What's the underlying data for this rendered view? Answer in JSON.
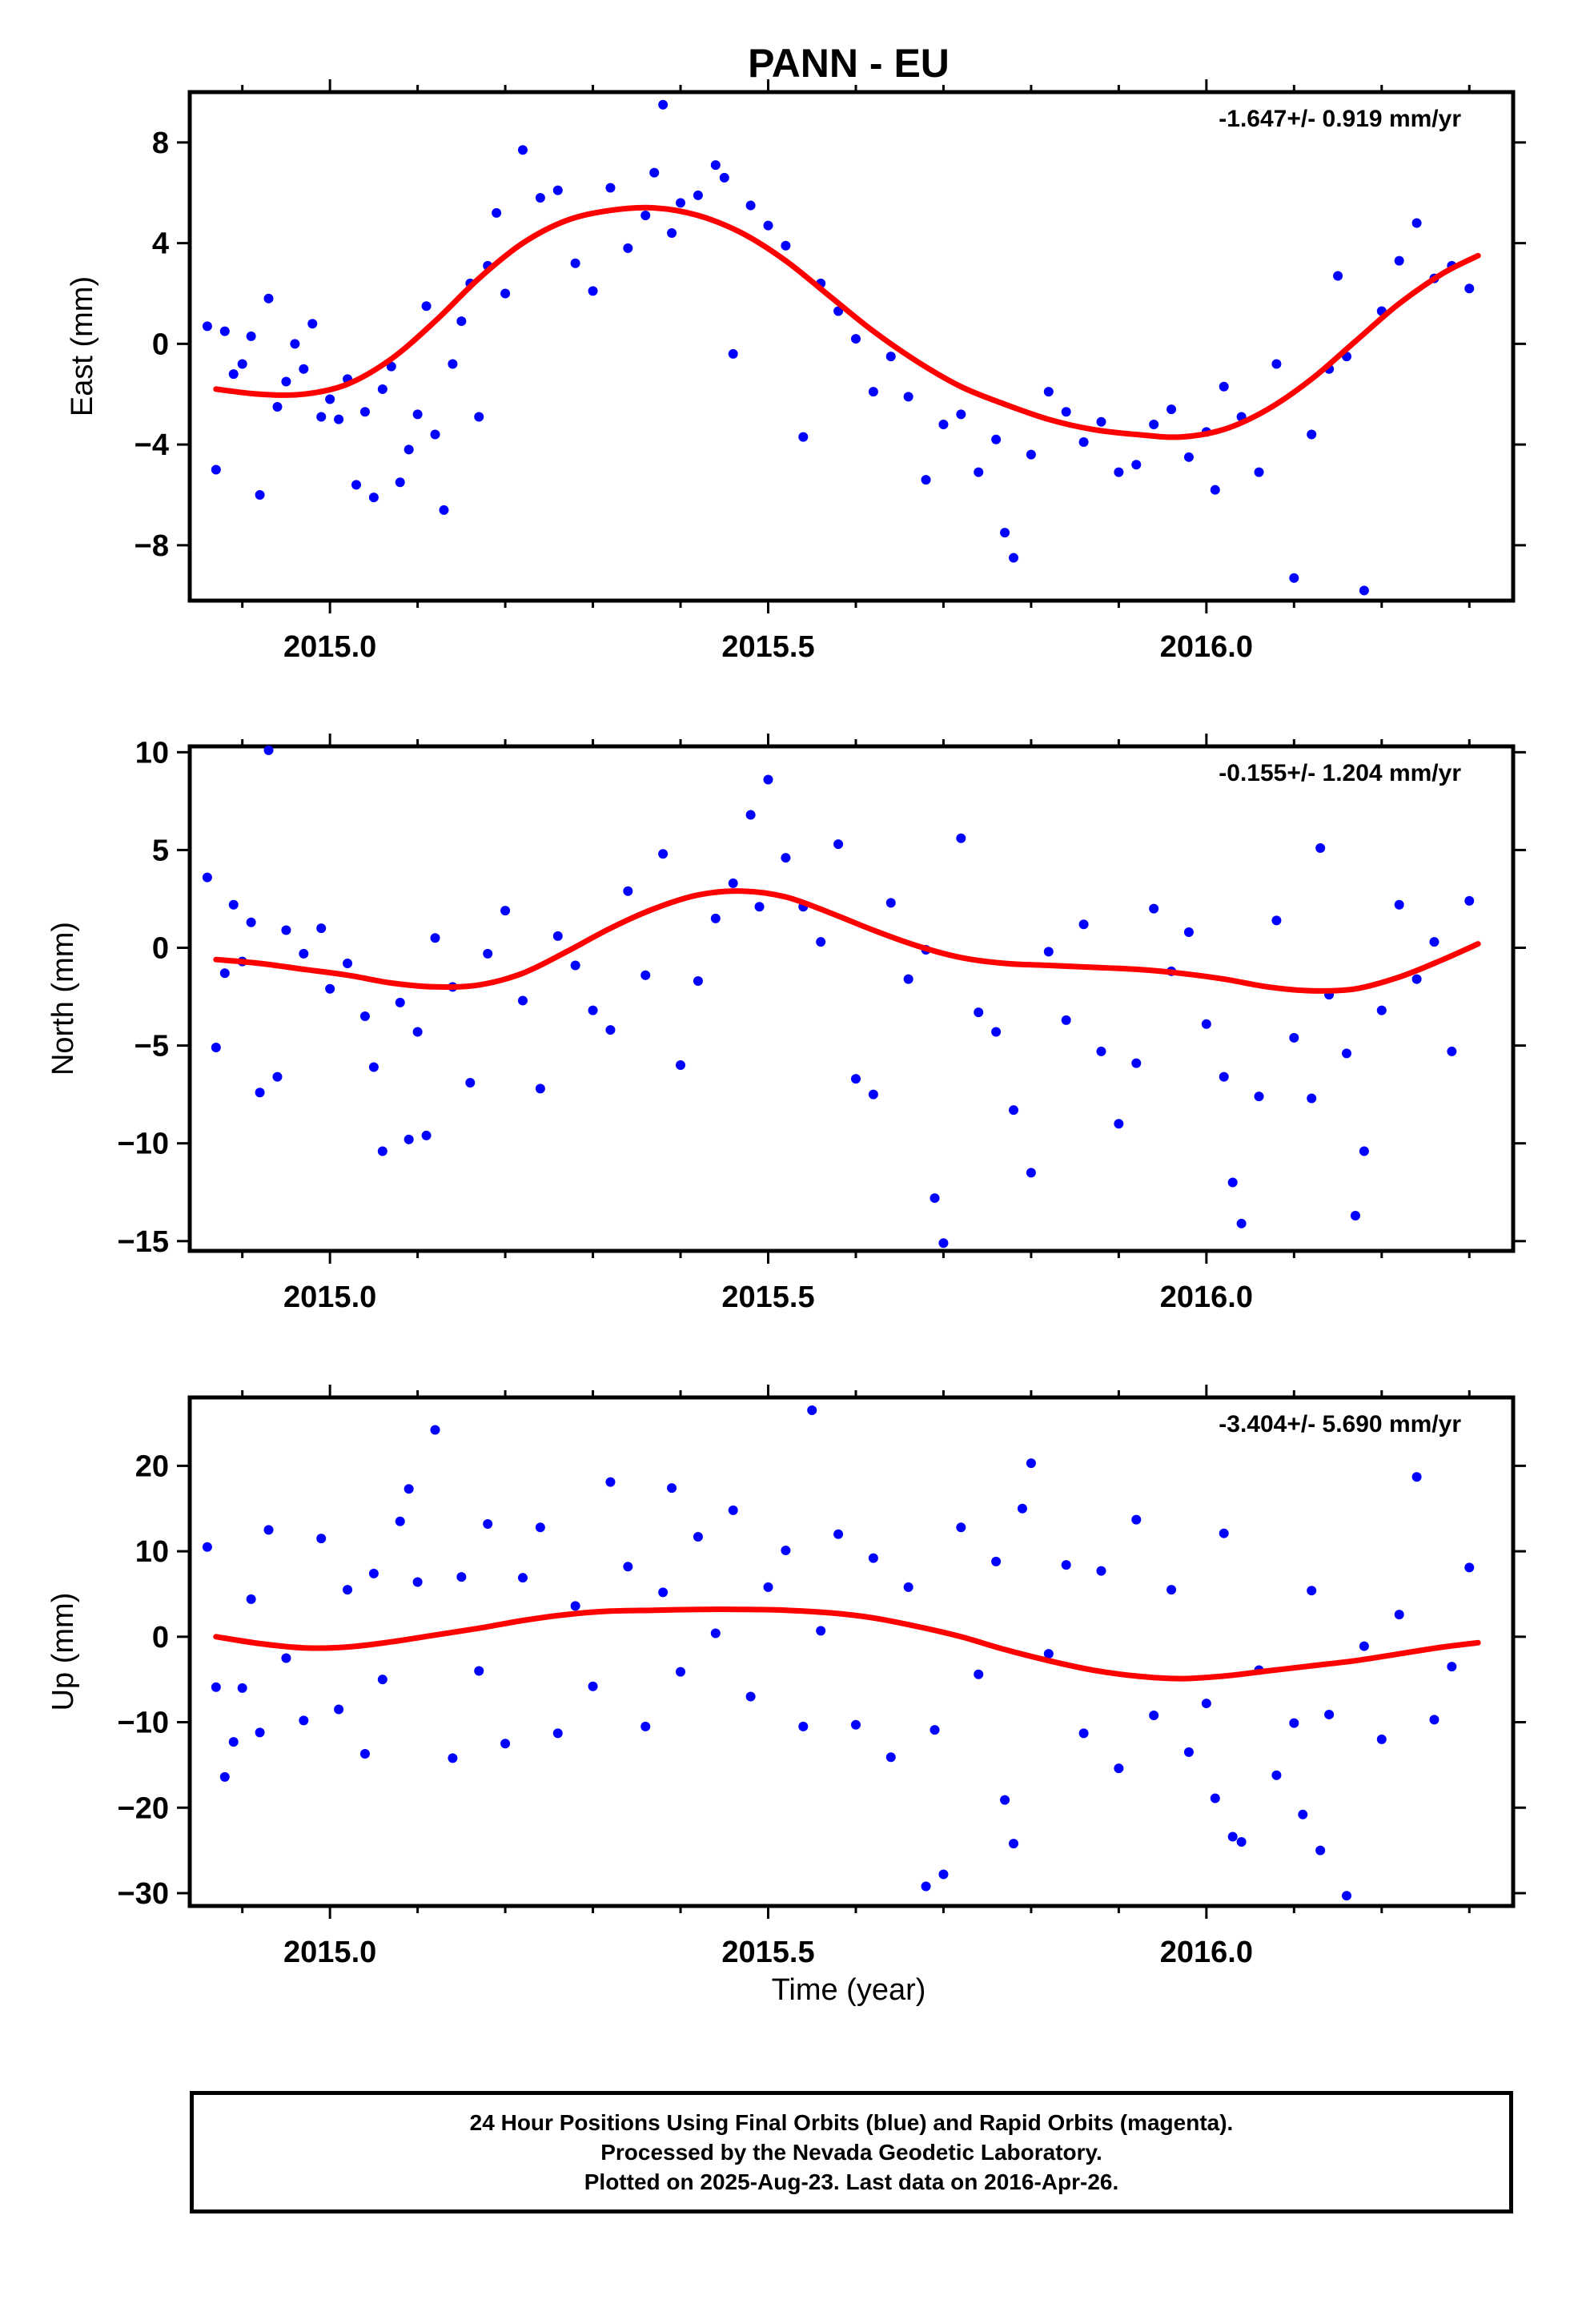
{
  "figure": {
    "title": "PANN - EU",
    "xlabel": "Time (year)",
    "colors": {
      "points": "#0000ff",
      "fit": "#ff0000",
      "axes": "#000000"
    }
  },
  "footer": {
    "line1": "24 Hour Positions Using Final Orbits (blue) and Rapid Orbits (magenta).",
    "line2": "Processed by the Nevada Geodetic Laboratory.",
    "line3": "Plotted on 2025-Aug-23. Last data on 2016-Apr-26."
  },
  "chart_data": [
    {
      "type": "scatter",
      "ylabel": "East (mm)",
      "rate": "-1.647+/- 0.919 mm/yr",
      "xlim": [
        2014.84,
        2016.35
      ],
      "ylim": [
        -10.2,
        10.0
      ],
      "xticks": [
        2015.0,
        2015.5,
        2016.0
      ],
      "xtick_labels": [
        "2015.0",
        "2015.5",
        "2016.0"
      ],
      "yticks": [
        -8,
        -4,
        0,
        4,
        8
      ],
      "ytick_labels": [
        "−8",
        "−4",
        "0",
        "4",
        "8"
      ],
      "fit": {
        "name": "",
        "x": [
          2014.87,
          2014.92,
          2014.97,
          2015.02,
          2015.07,
          2015.12,
          2015.17,
          2015.22,
          2015.27,
          2015.32,
          2015.37,
          2015.42,
          2015.47,
          2015.52,
          2015.57,
          2015.62,
          2015.67,
          2015.72,
          2015.77,
          2015.82,
          2015.87,
          2015.92,
          2015.97,
          2016.02,
          2016.07,
          2016.12,
          2016.17,
          2016.22,
          2016.27,
          2016.31
        ],
        "y": [
          -1.8,
          -2.0,
          -2.0,
          -1.6,
          -0.6,
          0.9,
          2.6,
          4.0,
          4.9,
          5.3,
          5.4,
          5.1,
          4.4,
          3.3,
          1.9,
          0.5,
          -0.7,
          -1.7,
          -2.4,
          -3.0,
          -3.4,
          -3.6,
          -3.7,
          -3.4,
          -2.6,
          -1.4,
          0.1,
          1.6,
          2.8,
          3.5
        ]
      },
      "series": [
        {
          "name": "",
          "x": [
            2014.86,
            2014.87,
            2014.88,
            2014.89,
            2014.9,
            2014.91,
            2014.92,
            2014.93,
            2014.94,
            2014.95,
            2014.96,
            2014.97,
            2014.98,
            2014.99,
            2015.0,
            2015.01,
            2015.02,
            2015.03,
            2015.04,
            2015.05,
            2015.06,
            2015.07,
            2015.08,
            2015.09,
            2015.1,
            2015.11,
            2015.12,
            2015.13,
            2015.14,
            2015.15,
            2015.16,
            2015.17,
            2015.18,
            2015.19,
            2015.2,
            2015.22,
            2015.24,
            2015.26,
            2015.28,
            2015.3,
            2015.32,
            2015.34,
            2015.36,
            2015.37,
            2015.38,
            2015.39,
            2015.4,
            2015.42,
            2015.44,
            2015.45,
            2015.46,
            2015.48,
            2015.5,
            2015.52,
            2015.54,
            2015.56,
            2015.58,
            2015.6,
            2015.62,
            2015.64,
            2015.66,
            2015.68,
            2015.7,
            2015.72,
            2015.74,
            2015.76,
            2015.77,
            2015.78,
            2015.8,
            2015.82,
            2015.84,
            2015.86,
            2015.88,
            2015.9,
            2015.92,
            2015.94,
            2015.96,
            2015.98,
            2016.0,
            2016.01,
            2016.02,
            2016.04,
            2016.06,
            2016.08,
            2016.1,
            2016.12,
            2016.14,
            2016.15,
            2016.16,
            2016.18,
            2016.2,
            2016.22,
            2016.24,
            2016.26,
            2016.28,
            2016.3
          ],
          "y": [
            0.7,
            -5.0,
            0.5,
            -1.2,
            -0.8,
            0.3,
            -6.0,
            1.8,
            -2.5,
            -1.5,
            0.0,
            -1.0,
            0.8,
            -2.9,
            -2.2,
            -3.0,
            -1.4,
            -5.6,
            -2.7,
            -6.1,
            -1.8,
            -0.9,
            -5.5,
            -4.2,
            -2.8,
            1.5,
            -3.6,
            -6.6,
            -0.8,
            0.9,
            2.4,
            -2.9,
            3.1,
            5.2,
            2.0,
            7.7,
            5.8,
            6.1,
            3.2,
            2.1,
            6.2,
            3.8,
            5.1,
            6.8,
            9.5,
            4.4,
            5.6,
            5.9,
            7.1,
            6.6,
            -0.4,
            5.5,
            4.7,
            3.9,
            -3.7,
            2.4,
            1.3,
            0.2,
            -1.9,
            -0.5,
            -2.1,
            -5.4,
            -3.2,
            -2.8,
            -5.1,
            -3.8,
            -7.5,
            -8.5,
            -4.4,
            -1.9,
            -2.7,
            -3.9,
            -3.1,
            -5.1,
            -4.8,
            -3.2,
            -2.6,
            -4.5,
            -3.5,
            -5.8,
            -1.7,
            -2.9,
            -5.1,
            -0.8,
            -9.3,
            -3.6,
            -1.0,
            2.7,
            -0.5,
            -9.8,
            1.3,
            3.3,
            4.8,
            2.6,
            3.1,
            2.2
          ]
        }
      ]
    },
    {
      "type": "scatter",
      "ylabel": "North (mm)",
      "rate": "-0.155+/- 1.204 mm/yr",
      "xlim": [
        2014.84,
        2016.35
      ],
      "ylim": [
        -15.5,
        10.3
      ],
      "xticks": [
        2015.0,
        2015.5,
        2016.0
      ],
      "xtick_labels": [
        "2015.0",
        "2015.5",
        "2016.0"
      ],
      "yticks": [
        -15,
        -10,
        -5,
        0,
        5,
        10
      ],
      "ytick_labels": [
        "−15",
        "−10",
        "−5",
        "0",
        "5",
        "10"
      ],
      "fit": {
        "name": "",
        "x": [
          2014.87,
          2014.92,
          2014.97,
          2015.02,
          2015.07,
          2015.12,
          2015.17,
          2015.22,
          2015.27,
          2015.32,
          2015.37,
          2015.42,
          2015.47,
          2015.52,
          2015.57,
          2015.62,
          2015.67,
          2015.72,
          2015.77,
          2015.82,
          2015.87,
          2015.92,
          2015.97,
          2016.02,
          2016.07,
          2016.12,
          2016.17,
          2016.22,
          2016.27,
          2016.31
        ],
        "y": [
          -0.6,
          -0.8,
          -1.1,
          -1.4,
          -1.8,
          -2.0,
          -1.9,
          -1.3,
          -0.2,
          1.0,
          2.0,
          2.7,
          2.9,
          2.6,
          1.8,
          0.9,
          0.1,
          -0.5,
          -0.8,
          -0.9,
          -1.0,
          -1.1,
          -1.3,
          -1.6,
          -2.0,
          -2.2,
          -2.1,
          -1.5,
          -0.6,
          0.2
        ]
      },
      "series": [
        {
          "name": "",
          "x": [
            2014.86,
            2014.87,
            2014.88,
            2014.89,
            2014.9,
            2014.91,
            2014.92,
            2014.93,
            2014.94,
            2014.95,
            2014.97,
            2014.99,
            2015.0,
            2015.02,
            2015.04,
            2015.05,
            2015.06,
            2015.08,
            2015.09,
            2015.1,
            2015.11,
            2015.12,
            2015.14,
            2015.16,
            2015.18,
            2015.2,
            2015.22,
            2015.24,
            2015.26,
            2015.28,
            2015.3,
            2015.32,
            2015.34,
            2015.36,
            2015.38,
            2015.4,
            2015.42,
            2015.44,
            2015.46,
            2015.48,
            2015.49,
            2015.5,
            2015.52,
            2015.54,
            2015.56,
            2015.58,
            2015.6,
            2015.62,
            2015.64,
            2015.66,
            2015.68,
            2015.69,
            2015.7,
            2015.72,
            2015.74,
            2015.76,
            2015.78,
            2015.8,
            2015.82,
            2015.84,
            2015.86,
            2015.88,
            2015.9,
            2015.92,
            2015.94,
            2015.96,
            2015.98,
            2016.0,
            2016.02,
            2016.03,
            2016.04,
            2016.06,
            2016.08,
            2016.1,
            2016.12,
            2016.13,
            2016.14,
            2016.16,
            2016.17,
            2016.18,
            2016.2,
            2016.22,
            2016.24,
            2016.26,
            2016.28,
            2016.3
          ],
          "y": [
            3.6,
            -5.1,
            -1.3,
            2.2,
            -0.7,
            1.3,
            -7.4,
            10.1,
            -6.6,
            0.9,
            -0.3,
            1.0,
            -2.1,
            -0.8,
            -3.5,
            -6.1,
            -10.4,
            -2.8,
            -9.8,
            -4.3,
            -9.6,
            0.5,
            -2.0,
            -6.9,
            -0.3,
            1.9,
            -2.7,
            -7.2,
            0.6,
            -0.9,
            -3.2,
            -4.2,
            2.9,
            -1.4,
            4.8,
            -6.0,
            -1.7,
            1.5,
            3.3,
            6.8,
            2.1,
            8.6,
            4.6,
            2.1,
            0.3,
            5.3,
            -6.7,
            -7.5,
            2.3,
            -1.6,
            -0.1,
            -12.8,
            -15.1,
            5.6,
            -3.3,
            -4.3,
            -8.3,
            -11.5,
            -0.2,
            -3.7,
            1.2,
            -5.3,
            -9.0,
            -5.9,
            2.0,
            -1.2,
            0.8,
            -3.9,
            -6.6,
            -12.0,
            -14.1,
            -7.6,
            1.4,
            -4.6,
            -7.7,
            5.1,
            -2.4,
            -5.4,
            -13.7,
            -10.4,
            -3.2,
            2.2,
            -1.6,
            0.3,
            -5.3,
            2.4
          ]
        }
      ]
    },
    {
      "type": "scatter",
      "ylabel": "Up (mm)",
      "rate": "-3.404+/- 5.690 mm/yr",
      "xlim": [
        2014.84,
        2016.35
      ],
      "ylim": [
        -31.5,
        28.0
      ],
      "xticks": [
        2015.0,
        2015.5,
        2016.0
      ],
      "xtick_labels": [
        "2015.0",
        "2015.5",
        "2016.0"
      ],
      "yticks": [
        -30,
        -20,
        -10,
        0,
        10,
        20
      ],
      "ytick_labels": [
        "−30",
        "−20",
        "−10",
        "0",
        "10",
        "20"
      ],
      "fit": {
        "name": "",
        "x": [
          2014.87,
          2014.92,
          2014.97,
          2015.02,
          2015.07,
          2015.12,
          2015.17,
          2015.22,
          2015.27,
          2015.32,
          2015.37,
          2015.42,
          2015.47,
          2015.52,
          2015.57,
          2015.62,
          2015.67,
          2015.72,
          2015.77,
          2015.82,
          2015.87,
          2015.92,
          2015.97,
          2016.02,
          2016.07,
          2016.12,
          2016.17,
          2016.22,
          2016.27,
          2016.31
        ],
        "y": [
          0.0,
          -0.8,
          -1.3,
          -1.2,
          -0.6,
          0.2,
          1.0,
          1.9,
          2.6,
          3.0,
          3.1,
          3.2,
          3.2,
          3.1,
          2.8,
          2.2,
          1.2,
          0.0,
          -1.5,
          -2.8,
          -3.9,
          -4.6,
          -4.9,
          -4.6,
          -4.0,
          -3.4,
          -2.8,
          -2.0,
          -1.2,
          -0.7
        ]
      },
      "series": [
        {
          "name": "",
          "x": [
            2014.86,
            2014.87,
            2014.88,
            2014.89,
            2014.9,
            2014.91,
            2014.92,
            2014.93,
            2014.95,
            2014.97,
            2014.99,
            2015.01,
            2015.02,
            2015.04,
            2015.05,
            2015.06,
            2015.08,
            2015.09,
            2015.1,
            2015.12,
            2015.14,
            2015.15,
            2015.17,
            2015.18,
            2015.2,
            2015.22,
            2015.24,
            2015.26,
            2015.28,
            2015.3,
            2015.32,
            2015.34,
            2015.36,
            2015.38,
            2015.39,
            2015.4,
            2015.42,
            2015.44,
            2015.46,
            2015.48,
            2015.5,
            2015.52,
            2015.54,
            2015.55,
            2015.56,
            2015.58,
            2015.6,
            2015.62,
            2015.64,
            2015.66,
            2015.68,
            2015.69,
            2015.7,
            2015.72,
            2015.74,
            2015.76,
            2015.77,
            2015.78,
            2015.79,
            2015.8,
            2015.82,
            2015.84,
            2015.86,
            2015.88,
            2015.9,
            2015.92,
            2015.94,
            2015.96,
            2015.98,
            2016.0,
            2016.01,
            2016.02,
            2016.03,
            2016.04,
            2016.06,
            2016.08,
            2016.1,
            2016.11,
            2016.12,
            2016.13,
            2016.14,
            2016.16,
            2016.18,
            2016.2,
            2016.22,
            2016.24,
            2016.26,
            2016.28,
            2016.3
          ],
          "y": [
            10.5,
            -5.9,
            -16.4,
            -12.3,
            -6.0,
            4.4,
            -11.2,
            12.5,
            -2.5,
            -9.8,
            11.5,
            -8.5,
            5.5,
            -13.7,
            7.4,
            -5.0,
            13.5,
            17.3,
            6.4,
            24.2,
            -14.2,
            7.0,
            -4.0,
            13.2,
            -12.5,
            6.9,
            12.8,
            -11.3,
            3.6,
            -5.8,
            18.1,
            8.2,
            -10.5,
            5.2,
            17.4,
            -4.1,
            11.7,
            0.4,
            14.8,
            -7.0,
            5.8,
            10.1,
            -10.5,
            26.5,
            0.7,
            12.0,
            -10.3,
            9.2,
            -14.1,
            5.8,
            -29.2,
            -10.9,
            -27.8,
            12.8,
            -4.4,
            8.8,
            -19.1,
            -24.2,
            15.0,
            20.3,
            -2.0,
            8.4,
            -11.3,
            7.7,
            -15.4,
            13.7,
            -9.2,
            5.5,
            -13.5,
            -7.8,
            -18.9,
            12.1,
            -23.4,
            -24.0,
            -3.9,
            -16.2,
            -10.1,
            -20.8,
            5.4,
            -25.0,
            -9.1,
            -30.3,
            -1.1,
            -12.0,
            2.6,
            18.7,
            -9.7,
            -3.5,
            8.1
          ]
        }
      ]
    }
  ]
}
